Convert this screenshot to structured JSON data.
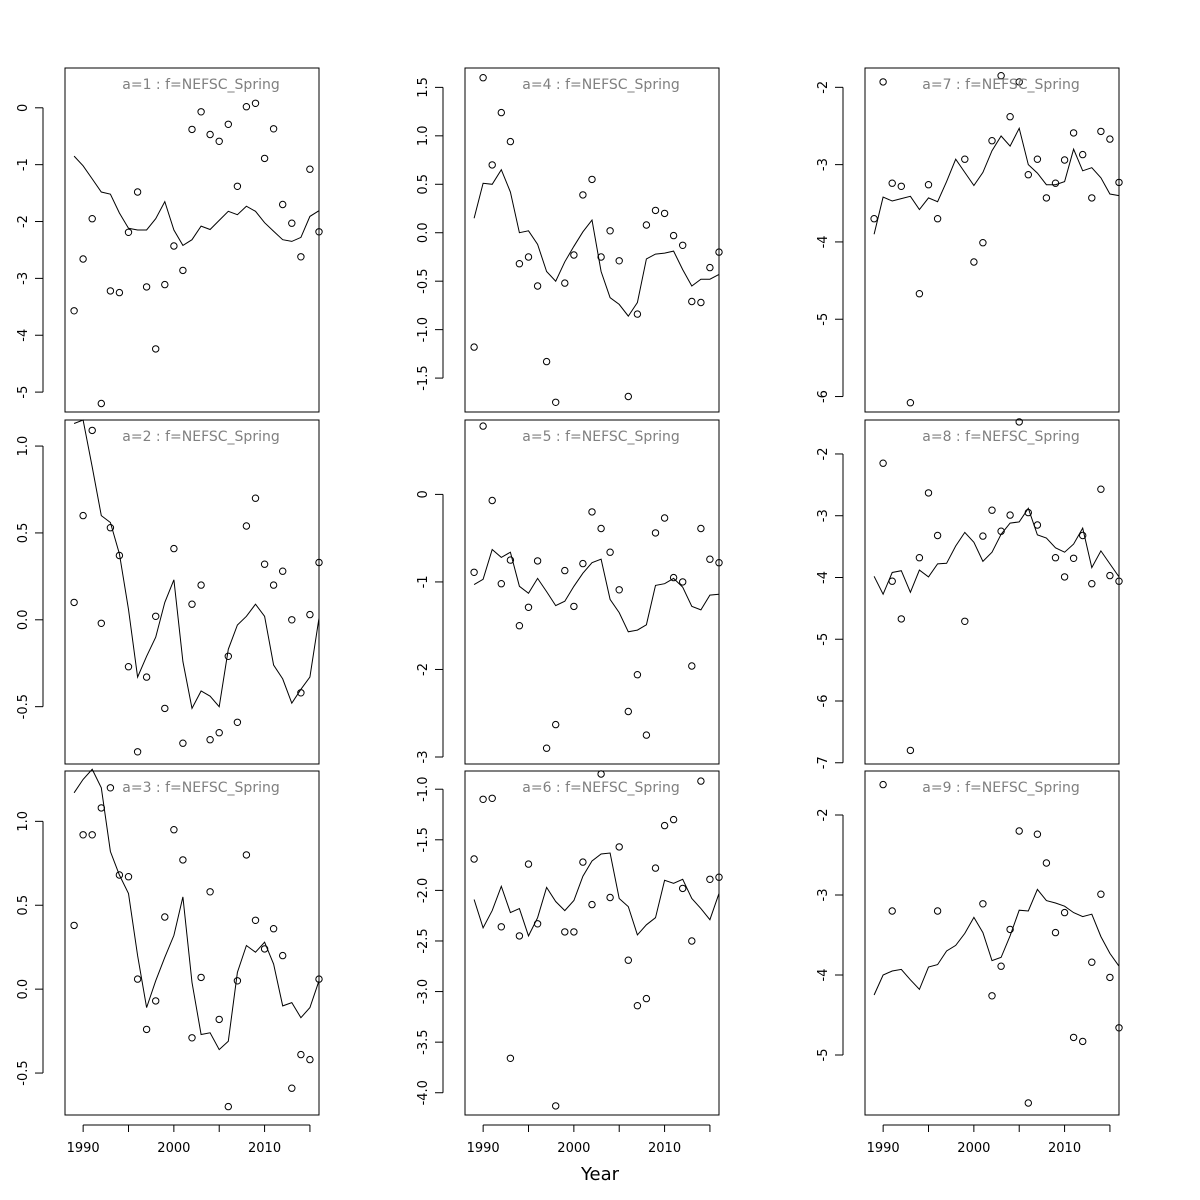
{
  "figure": {
    "xlabel": "Year"
  },
  "chart_data": [
    {
      "type": "scatter+line",
      "title": "a=1 : f=NEFSC_Spring",
      "xlim": [
        1988,
        2016
      ],
      "ylim": [
        -5.35,
        0.7
      ],
      "yticks": [
        -5,
        -4,
        -3,
        -2,
        -1,
        0
      ],
      "yticklabels": [
        "-5",
        "-4",
        "-3",
        "-2",
        "-1",
        "0"
      ],
      "xticks": [
        1990,
        2000,
        2010
      ],
      "xticklabels": [
        "1990",
        "2000",
        "2010"
      ],
      "show_xaxis": false,
      "x": [
        1989,
        1990,
        1991,
        1992,
        1993,
        1994,
        1995,
        1996,
        1997,
        1998,
        1999,
        2000,
        2001,
        2002,
        2003,
        2004,
        2005,
        2006,
        2007,
        2008,
        2009,
        2010,
        2011,
        2012,
        2013,
        2014,
        2015,
        2016
      ],
      "observed": [
        -3.57,
        -2.66,
        -1.95,
        -5.2,
        -3.22,
        -3.25,
        -2.19,
        -1.48,
        -3.15,
        -4.24,
        -3.11,
        -2.43,
        -2.86,
        -0.38,
        -0.07,
        -0.47,
        -0.59,
        -0.29,
        -1.38,
        0.02,
        0.08,
        -0.89,
        -0.37,
        -1.7,
        -2.03,
        -2.62,
        -1.08,
        -2.18
      ],
      "predicted": [
        -0.85,
        -1.02,
        -1.25,
        -1.48,
        -1.52,
        -1.85,
        -2.12,
        -2.15,
        -2.15,
        -1.95,
        -1.65,
        -2.15,
        -2.42,
        -2.32,
        -2.08,
        -2.14,
        -1.98,
        -1.82,
        -1.88,
        -1.73,
        -1.82,
        -2.02,
        -2.17,
        -2.32,
        -2.35,
        -2.28,
        -1.91,
        -1.81
      ]
    },
    {
      "type": "scatter+line",
      "title": "a=2 : f=NEFSC_Spring",
      "xlim": [
        1988,
        2016
      ],
      "ylim": [
        -0.83,
        1.15
      ],
      "yticks": [
        -0.5,
        0.0,
        0.5,
        1.0
      ],
      "yticklabels": [
        "-0.5",
        "0.0",
        "0.5",
        "1.0"
      ],
      "xticks": [
        1990,
        2000,
        2010
      ],
      "xticklabels": [
        "1990",
        "2000",
        "2010"
      ],
      "show_xaxis": false,
      "x": [
        1989,
        1990,
        1991,
        1992,
        1993,
        1994,
        1995,
        1996,
        1997,
        1998,
        1999,
        2000,
        2001,
        2002,
        2003,
        2004,
        2005,
        2006,
        2007,
        2008,
        2009,
        2010,
        2011,
        2012,
        2013,
        2014,
        2015,
        2016
      ],
      "observed": [
        0.1,
        0.6,
        1.09,
        -0.02,
        0.53,
        0.37,
        -0.27,
        -0.76,
        -0.33,
        0.02,
        -0.51,
        0.41,
        -0.71,
        0.09,
        0.2,
        -0.69,
        -0.65,
        -0.21,
        -0.59,
        0.54,
        0.7,
        0.32,
        0.2,
        0.28,
        0.0,
        -0.42,
        0.03,
        0.33
      ],
      "predicted": [
        1.13,
        1.15,
        0.88,
        0.6,
        0.56,
        0.38,
        0.06,
        -0.33,
        -0.21,
        -0.1,
        0.1,
        0.23,
        -0.24,
        -0.51,
        -0.41,
        -0.44,
        -0.5,
        -0.17,
        -0.03,
        0.02,
        0.09,
        0.02,
        -0.26,
        -0.34,
        -0.48,
        -0.4,
        -0.33,
        0.01
      ]
    },
    {
      "type": "scatter+line",
      "title": "a=3 : f=NEFSC_Spring",
      "xlim": [
        1988,
        2016
      ],
      "ylim": [
        -0.75,
        1.3
      ],
      "yticks": [
        -0.5,
        0.0,
        0.5,
        1.0
      ],
      "yticklabels": [
        "-0.5",
        "0.0",
        "0.5",
        "1.0"
      ],
      "xticks": [
        1990,
        2000,
        2010
      ],
      "xticklabels": [
        "1990",
        "2000",
        "2010"
      ],
      "show_xaxis": true,
      "x": [
        1989,
        1990,
        1991,
        1992,
        1993,
        1994,
        1995,
        1996,
        1997,
        1998,
        1999,
        2000,
        2001,
        2002,
        2003,
        2004,
        2005,
        2006,
        2007,
        2008,
        2009,
        2010,
        2011,
        2012,
        2013,
        2014,
        2015,
        2016
      ],
      "observed": [
        0.38,
        0.92,
        0.92,
        1.08,
        1.2,
        0.68,
        0.67,
        0.06,
        -0.24,
        -0.07,
        0.43,
        0.95,
        0.77,
        -0.29,
        0.07,
        0.58,
        -0.18,
        -0.7,
        0.05,
        0.8,
        0.41,
        0.24,
        0.36,
        0.2,
        -0.59,
        -0.39,
        -0.42,
        0.06
      ],
      "predicted": [
        1.17,
        1.25,
        1.31,
        1.2,
        0.82,
        0.68,
        0.57,
        0.2,
        -0.11,
        0.05,
        0.19,
        0.32,
        0.55,
        0.04,
        -0.27,
        -0.26,
        -0.36,
        -0.31,
        0.1,
        0.26,
        0.22,
        0.28,
        0.15,
        -0.1,
        -0.08,
        -0.17,
        -0.11,
        0.05
      ]
    },
    {
      "type": "scatter+line",
      "title": "a=4 : f=NEFSC_Spring",
      "xlim": [
        1988,
        2016
      ],
      "ylim": [
        -1.85,
        1.7
      ],
      "yticks": [
        -1.5,
        -1.0,
        -0.5,
        0.0,
        0.5,
        1.0,
        1.5
      ],
      "yticklabels": [
        "-1.5",
        "-1.0",
        "-0.5",
        "0.0",
        "0.5",
        "1.0",
        "1.5"
      ],
      "xticks": [
        1990,
        2000,
        2010
      ],
      "xticklabels": [
        "1990",
        "2000",
        "2010"
      ],
      "show_xaxis": false,
      "x": [
        1989,
        1990,
        1991,
        1992,
        1993,
        1994,
        1995,
        1996,
        1997,
        1998,
        1999,
        2000,
        2001,
        2002,
        2003,
        2004,
        2005,
        2006,
        2007,
        2008,
        2009,
        2010,
        2011,
        2012,
        2013,
        2014,
        2015,
        2016
      ],
      "observed": [
        -1.18,
        1.6,
        0.7,
        1.24,
        0.94,
        -0.32,
        -0.25,
        -0.55,
        -1.33,
        -1.75,
        -0.52,
        -0.23,
        0.39,
        0.55,
        -0.25,
        0.02,
        -0.29,
        -1.69,
        -0.84,
        0.08,
        0.23,
        0.2,
        -0.03,
        -0.13,
        -0.71,
        -0.72,
        -0.36,
        -0.2
      ],
      "predicted": [
        0.15,
        0.51,
        0.5,
        0.65,
        0.42,
        0.0,
        0.02,
        -0.12,
        -0.4,
        -0.5,
        -0.3,
        -0.14,
        0.01,
        0.13,
        -0.4,
        -0.67,
        -0.74,
        -0.86,
        -0.72,
        -0.27,
        -0.22,
        -0.21,
        -0.19,
        -0.38,
        -0.55,
        -0.48,
        -0.48,
        -0.43
      ]
    },
    {
      "type": "scatter+line",
      "title": "a=5 : f=NEFSC_Spring",
      "xlim": [
        1988,
        2016
      ],
      "ylim": [
        -3.08,
        0.85
      ],
      "yticks": [
        -3,
        -2,
        -1,
        0
      ],
      "yticklabels": [
        "-3",
        "-2",
        "-1",
        "0"
      ],
      "xticks": [
        1990,
        2000,
        2010
      ],
      "xticklabels": [
        "1990",
        "2000",
        "2010"
      ],
      "show_xaxis": false,
      "x": [
        1989,
        1990,
        1991,
        1992,
        1993,
        1994,
        1995,
        1996,
        1997,
        1998,
        1999,
        2000,
        2001,
        2002,
        2003,
        2004,
        2005,
        2006,
        2007,
        2008,
        2009,
        2010,
        2011,
        2012,
        2013,
        2014,
        2015,
        2016
      ],
      "observed": [
        -0.89,
        0.78,
        -0.07,
        -1.02,
        -0.75,
        -1.5,
        -1.29,
        -0.76,
        -2.9,
        -2.63,
        -0.87,
        -1.28,
        -0.79,
        -0.2,
        -0.39,
        -0.66,
        -1.09,
        -2.48,
        -2.06,
        -2.75,
        -0.44,
        -0.27,
        -0.95,
        -1.0,
        -1.96,
        -0.39,
        -0.74,
        -0.78
      ],
      "predicted": [
        -1.03,
        -0.97,
        -0.63,
        -0.72,
        -0.66,
        -1.05,
        -1.13,
        -0.96,
        -1.11,
        -1.27,
        -1.22,
        -1.05,
        -0.9,
        -0.78,
        -0.74,
        -1.2,
        -1.35,
        -1.57,
        -1.55,
        -1.49,
        -1.04,
        -1.02,
        -0.96,
        -1.06,
        -1.28,
        -1.32,
        -1.15,
        -1.14
      ]
    },
    {
      "type": "scatter+line",
      "title": "a=6 : f=NEFSC_Spring",
      "xlim": [
        1988,
        2016
      ],
      "ylim": [
        -4.22,
        -0.82
      ],
      "yticks": [
        -4.0,
        -3.5,
        -3.0,
        -2.5,
        -2.0,
        -1.5,
        -1.0
      ],
      "yticklabels": [
        "-4.0",
        "-3.5",
        "-3.0",
        "-2.5",
        "-2.0",
        "-1.5",
        "-1.0"
      ],
      "xticks": [
        1990,
        2000,
        2010
      ],
      "xticklabels": [
        "1990",
        "2000",
        "2010"
      ],
      "show_xaxis": true,
      "x": [
        1989,
        1990,
        1991,
        1992,
        1993,
        1994,
        1995,
        1996,
        1997,
        1998,
        1999,
        2000,
        2001,
        2002,
        2003,
        2004,
        2005,
        2006,
        2007,
        2008,
        2009,
        2010,
        2011,
        2012,
        2013,
        2014,
        2015,
        2016
      ],
      "observed": [
        -1.69,
        -1.1,
        -1.09,
        -2.36,
        -3.66,
        -2.45,
        -1.74,
        -2.33,
        -4.13,
        -2.41,
        -2.41,
        -1.72,
        -2.14,
        -0.85,
        -2.07,
        -1.57,
        -2.69,
        -3.14,
        -3.07,
        -1.78,
        -1.36,
        -1.3,
        -1.98,
        -2.5,
        -0.92,
        -1.89,
        -1.87
      ],
      "observed_x": [
        1989,
        1990,
        1991,
        1992,
        1993,
        1994,
        1995,
        1996,
        1998,
        1999,
        2000,
        2001,
        2002,
        2003,
        2004,
        2005,
        2006,
        2007,
        2008,
        2009,
        2010,
        2011,
        2012,
        2013,
        2014,
        2015,
        2016
      ],
      "predicted": [
        -2.09,
        -2.37,
        -2.2,
        -1.96,
        -2.22,
        -2.18,
        -2.45,
        -2.27,
        -1.97,
        -2.11,
        -2.2,
        -2.1,
        -1.86,
        -1.71,
        -1.64,
        -1.63,
        -2.08,
        -2.16,
        -2.44,
        -2.34,
        -2.27,
        -1.9,
        -1.93,
        -1.89,
        -2.08,
        -2.18,
        -2.29,
        -2.03
      ]
    },
    {
      "type": "scatter+line",
      "title": "a=7 : f=NEFSC_Spring",
      "xlim": [
        1988,
        2016
      ],
      "ylim": [
        -6.2,
        -1.75
      ],
      "yticks": [
        -6,
        -5,
        -4,
        -3,
        -2
      ],
      "yticklabels": [
        "-6",
        "-5",
        "-4",
        "-3",
        "-2"
      ],
      "xticks": [
        1990,
        2000,
        2010
      ],
      "xticklabels": [
        "1990",
        "2000",
        "2010"
      ],
      "show_xaxis": false,
      "x": [
        1989,
        1990,
        1991,
        1992,
        1993,
        1994,
        1995,
        1996,
        1997,
        1998,
        1999,
        2000,
        2001,
        2002,
        2003,
        2004,
        2005,
        2006,
        2007,
        2008,
        2009,
        2010,
        2011,
        2012,
        2013,
        2014,
        2015,
        2016
      ],
      "observed": [
        -3.7,
        -1.93,
        -3.24,
        -3.28,
        -6.08,
        -4.67,
        -3.26,
        -3.7,
        -2.93,
        -4.26,
        -4.01,
        -2.69,
        -1.85,
        -2.38,
        -1.93,
        -3.13,
        -2.93,
        -3.43,
        -3.24,
        -2.94,
        -2.59,
        -2.87,
        -3.43,
        -2.57,
        -2.67,
        -3.23
      ],
      "observed_x": [
        1989,
        1990,
        1991,
        1992,
        1993,
        1994,
        1995,
        1996,
        1999,
        2000,
        2001,
        2002,
        2003,
        2004,
        2005,
        2006,
        2007,
        2008,
        2009,
        2010,
        2011,
        2012,
        2013,
        2014,
        2015,
        2016
      ],
      "predicted": [
        -3.9,
        -3.42,
        -3.47,
        -3.44,
        -3.41,
        -3.58,
        -3.43,
        -3.48,
        -3.22,
        -2.93,
        -3.1,
        -3.27,
        -3.1,
        -2.82,
        -2.63,
        -2.76,
        -2.53,
        -3.0,
        -3.11,
        -3.26,
        -3.26,
        -3.22,
        -2.8,
        -3.08,
        -3.04,
        -3.17,
        -3.38,
        -3.4
      ]
    },
    {
      "type": "scatter+line",
      "title": "a=8 : f=NEFSC_Spring",
      "xlim": [
        1988,
        2016
      ],
      "ylim": [
        -7.02,
        -1.45
      ],
      "yticks": [
        -7,
        -6,
        -5,
        -4,
        -3,
        -2
      ],
      "yticklabels": [
        "-7",
        "-6",
        "-5",
        "-4",
        "-3",
        "-2"
      ],
      "xticks": [
        1990,
        2000,
        2010
      ],
      "xticklabels": [
        "1990",
        "2000",
        "2010"
      ],
      "show_xaxis": false,
      "x": [
        1989,
        1990,
        1991,
        1992,
        1993,
        1994,
        1995,
        1996,
        1997,
        1998,
        1999,
        2000,
        2001,
        2002,
        2003,
        2004,
        2005,
        2006,
        2007,
        2008,
        2009,
        2010,
        2011,
        2012,
        2013,
        2014,
        2015,
        2016
      ],
      "observed": [
        -2.15,
        -4.06,
        -4.67,
        -6.8,
        -3.68,
        -2.63,
        -3.32,
        -4.71,
        -3.33,
        -2.91,
        -3.25,
        -2.99,
        -1.48,
        -2.95,
        -3.15,
        -3.68,
        -3.99,
        -3.69,
        -3.32,
        -4.1,
        -2.57,
        -3.97,
        -4.06
      ],
      "observed_x": [
        1990,
        1991,
        1992,
        1993,
        1994,
        1995,
        1996,
        1999,
        2001,
        2002,
        2003,
        2004,
        2005,
        2006,
        2007,
        2009,
        2010,
        2011,
        2012,
        2013,
        2014,
        2015,
        2016
      ],
      "predicted": [
        -3.98,
        -4.27,
        -3.92,
        -3.89,
        -4.24,
        -3.88,
        -3.99,
        -3.78,
        -3.77,
        -3.49,
        -3.27,
        -3.43,
        -3.74,
        -3.59,
        -3.3,
        -3.12,
        -3.1,
        -2.88,
        -3.31,
        -3.36,
        -3.52,
        -3.59,
        -3.46,
        -3.2,
        -3.84,
        -3.57,
        -3.78,
        -3.99
      ]
    },
    {
      "type": "scatter+line",
      "title": "a=9 : f=NEFSC_Spring",
      "xlim": [
        1988,
        2016
      ],
      "ylim": [
        -5.75,
        -1.45
      ],
      "yticks": [
        -5,
        -4,
        -3,
        -2
      ],
      "yticklabels": [
        "-5",
        "-4",
        "-3",
        "-2"
      ],
      "xticks": [
        1990,
        2000,
        2010
      ],
      "xticklabels": [
        "1990",
        "2000",
        "2010"
      ],
      "show_xaxis": true,
      "x": [
        1989,
        1990,
        1991,
        1992,
        1993,
        1994,
        1995,
        1996,
        1997,
        1998,
        1999,
        2000,
        2001,
        2002,
        2003,
        2004,
        2005,
        2006,
        2007,
        2008,
        2009,
        2010,
        2011,
        2012,
        2013,
        2014,
        2015,
        2016
      ],
      "observed": [
        -1.62,
        -3.2,
        -3.2,
        -3.11,
        -4.26,
        -3.89,
        -3.43,
        -2.2,
        -5.6,
        -2.24,
        -2.6,
        -3.47,
        -3.22,
        -4.78,
        -4.83,
        -3.84,
        -2.99,
        -4.03,
        -4.66
      ],
      "observed_x": [
        1990,
        1991,
        1996,
        2001,
        2002,
        2003,
        2004,
        2005,
        2006,
        2007,
        2008,
        2009,
        2010,
        2011,
        2012,
        2013,
        2014,
        2015,
        2016
      ],
      "predicted": [
        -4.25,
        -4.0,
        -3.95,
        -3.93,
        -4.06,
        -4.18,
        -3.9,
        -3.87,
        -3.7,
        -3.63,
        -3.48,
        -3.28,
        -3.47,
        -3.82,
        -3.78,
        -3.51,
        -3.19,
        -3.2,
        -2.93,
        -3.07,
        -3.1,
        -3.14,
        -3.22,
        -3.27,
        -3.24,
        -3.52,
        -3.73,
        -3.89
      ]
    }
  ]
}
